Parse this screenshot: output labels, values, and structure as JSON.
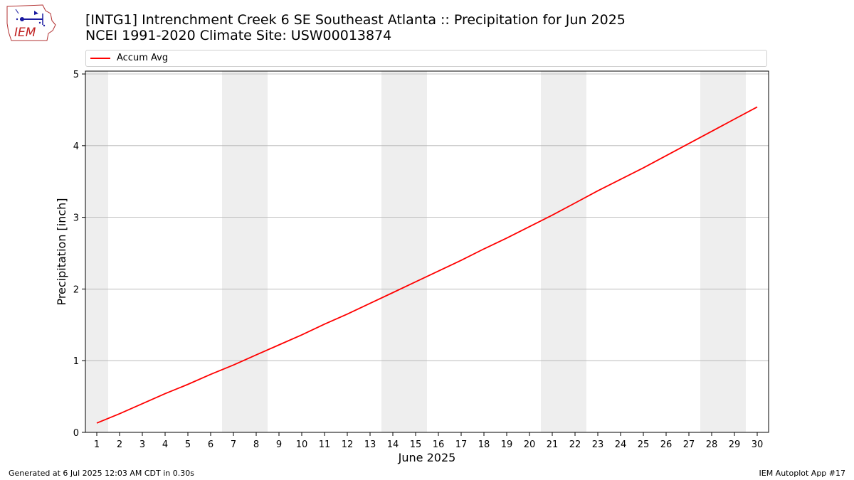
{
  "header": {
    "logo_text": "IEM",
    "title_line1": "[INTG1] Intrenchment Creek 6 SE Southeast Atlanta :: Precipitation for Jun 2025",
    "title_line2": "NCEI 1991-2020 Climate Site: USW00013874"
  },
  "footer": {
    "generated": "Generated at 6 Jul 2025 12:03 AM CDT in 0.30s",
    "app": "IEM Autoplot App #17"
  },
  "colors": {
    "series": "#ff0000",
    "weekend_band": "#eeeeee",
    "grid": "#b0b0b0"
  },
  "chart_data": {
    "type": "line",
    "title": "[INTG1] Intrenchment Creek 6 SE Southeast Atlanta :: Precipitation for Jun 2025",
    "subtitle": "NCEI 1991-2020 Climate Site: USW00013874",
    "xlabel": "June 2025",
    "ylabel": "Precipitation [inch]",
    "xlim": [
      0.5,
      30.5
    ],
    "ylim": [
      0,
      5.04
    ],
    "yticks": [
      0,
      1,
      2,
      3,
      4,
      5
    ],
    "xticks": [
      1,
      2,
      3,
      4,
      5,
      6,
      7,
      8,
      9,
      10,
      11,
      12,
      13,
      14,
      15,
      16,
      17,
      18,
      19,
      20,
      21,
      22,
      23,
      24,
      25,
      26,
      27,
      28,
      29,
      30
    ],
    "grid": "horizontal",
    "legend_position": "top",
    "weekend_bands": [
      [
        0.5,
        1.5
      ],
      [
        6.5,
        8.5
      ],
      [
        13.5,
        15.5
      ],
      [
        20.5,
        22.5
      ],
      [
        27.5,
        29.5
      ]
    ],
    "series": [
      {
        "name": "Accum Avg",
        "x": [
          1,
          2,
          3,
          4,
          5,
          6,
          7,
          8,
          9,
          10,
          11,
          12,
          13,
          14,
          15,
          16,
          17,
          18,
          19,
          20,
          21,
          22,
          23,
          24,
          25,
          26,
          27,
          28,
          29,
          30
        ],
        "values": [
          0.13,
          0.26,
          0.4,
          0.54,
          0.67,
          0.81,
          0.94,
          1.08,
          1.22,
          1.36,
          1.51,
          1.65,
          1.8,
          1.95,
          2.1,
          2.25,
          2.4,
          2.56,
          2.71,
          2.87,
          3.03,
          3.2,
          3.37,
          3.53,
          3.69,
          3.86,
          4.03,
          4.2,
          4.37,
          4.54
        ]
      }
    ]
  }
}
